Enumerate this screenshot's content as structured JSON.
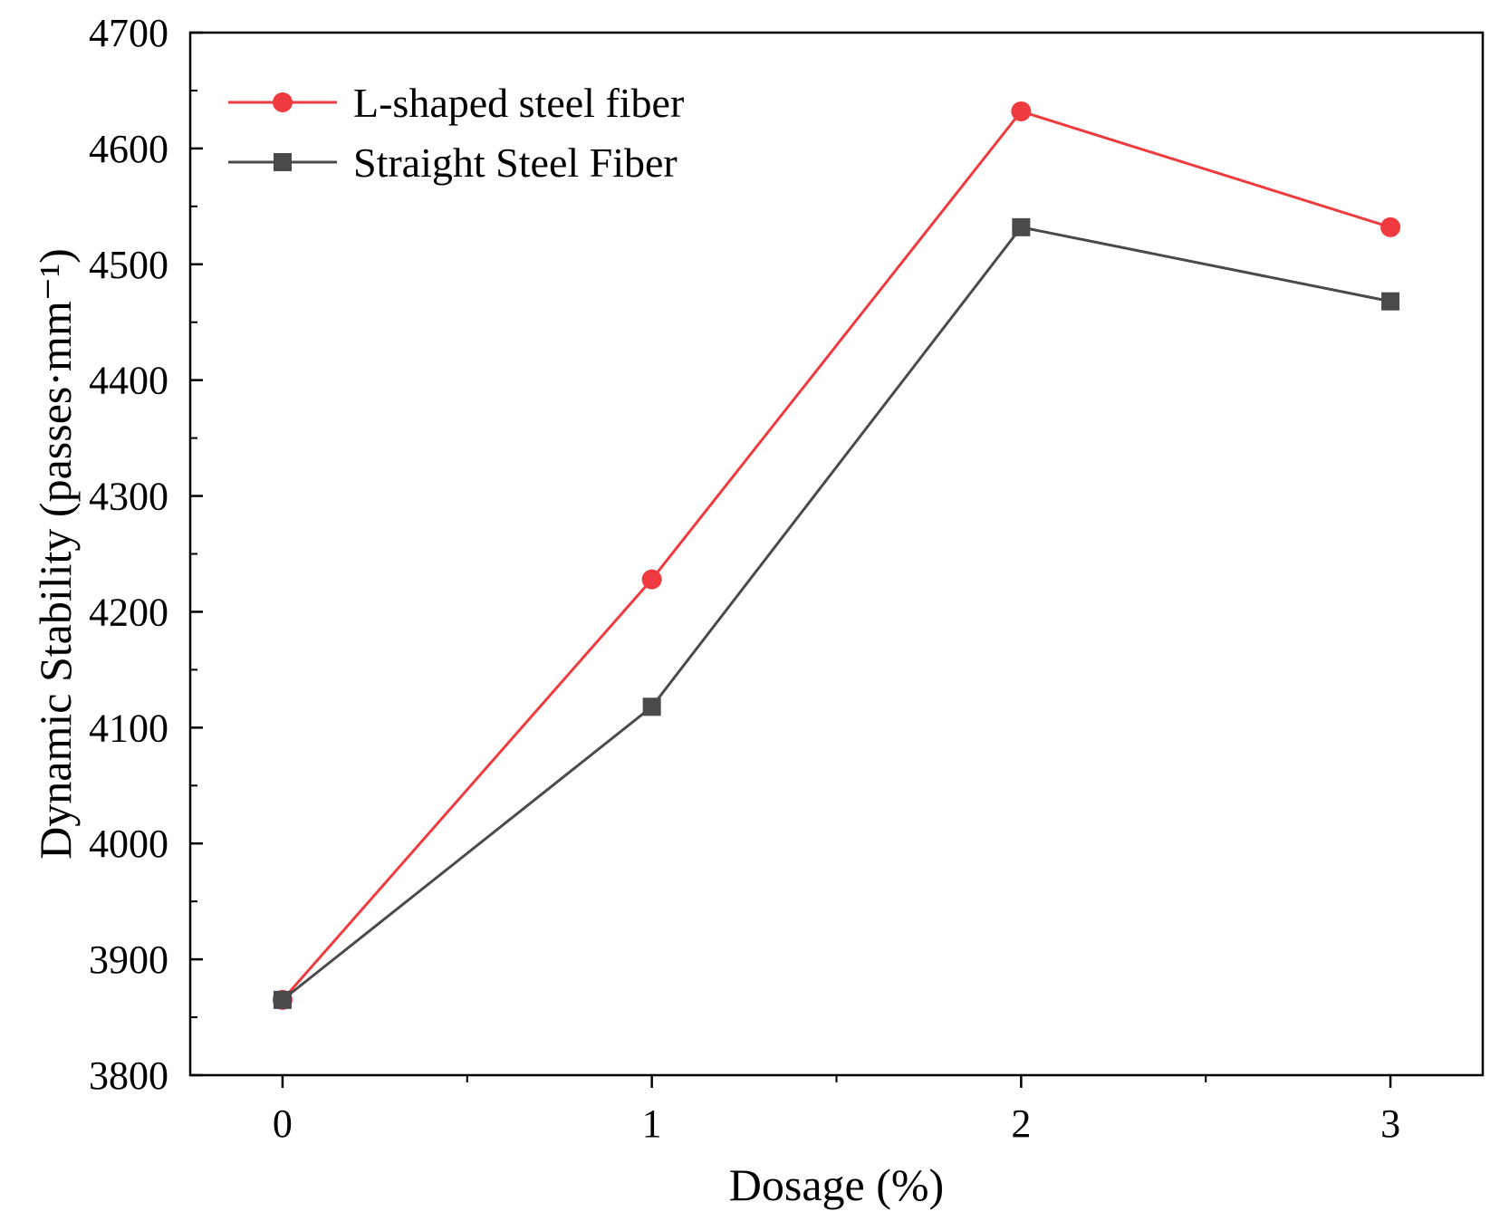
{
  "chart_data": {
    "type": "line",
    "title": "",
    "xlabel": "Dosage (%)",
    "ylabel": "Dynamic Stability (passes·mm⁻¹)",
    "x": [
      0,
      1,
      2,
      3
    ],
    "xlim": [
      -0.25,
      3.25
    ],
    "ylim": [
      3800,
      4700
    ],
    "xticks": [
      "0",
      "1",
      "2",
      "3"
    ],
    "yticks": [
      "3800",
      "3900",
      "4000",
      "4100",
      "4200",
      "4300",
      "4400",
      "4500",
      "4600",
      "4700"
    ],
    "legend_position": "top-left",
    "grid": false,
    "series": [
      {
        "name": "L-shaped steel fiber",
        "marker": "circle",
        "color": "#ef3b3f",
        "values": [
          3865,
          4228,
          4632,
          4532
        ]
      },
      {
        "name": "Straight Steel Fiber",
        "marker": "square",
        "color": "#4a4a4a",
        "values": [
          3865,
          4118,
          4532,
          4468
        ]
      }
    ]
  }
}
